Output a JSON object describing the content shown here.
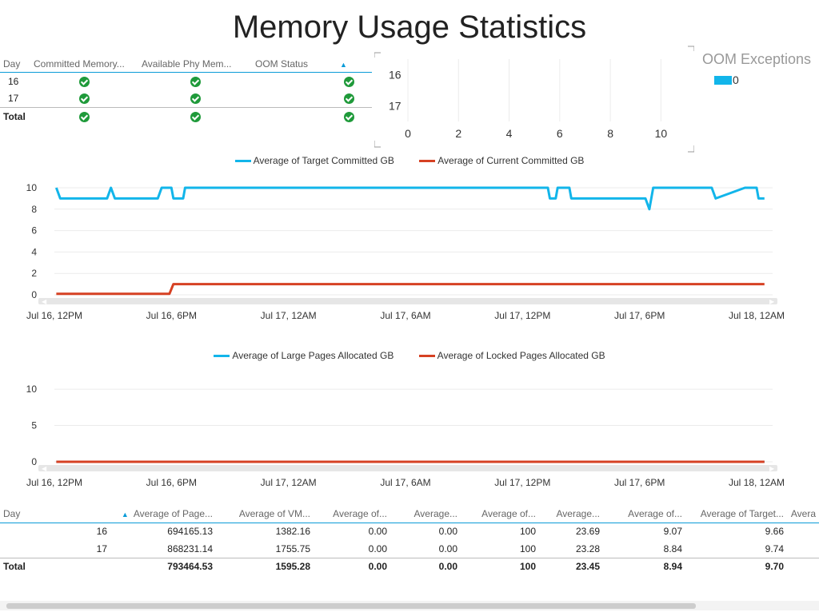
{
  "page_title": "Memory Usage Statistics",
  "status_table": {
    "headers": [
      "Day",
      "Committed Memory...",
      "Available Phy Mem...",
      "OOM Status"
    ],
    "rows": [
      {
        "day": "16"
      },
      {
        "day": "17"
      }
    ],
    "total_label": "Total"
  },
  "oom_chart": {
    "legend_title": "OOM Exceptions",
    "legend_label": "0",
    "categories": [
      "16",
      "17"
    ],
    "x_ticks": [
      "0",
      "2",
      "4",
      "6",
      "8",
      "10"
    ]
  },
  "chart_data": [
    {
      "type": "bar",
      "orientation": "horizontal",
      "title": "OOM Exceptions",
      "categories": [
        "16",
        "17"
      ],
      "series": [
        {
          "name": "0",
          "values": [
            0,
            0
          ]
        }
      ],
      "xlim": [
        0,
        11
      ],
      "x_ticks": [
        0,
        2,
        4,
        6,
        8,
        10
      ]
    },
    {
      "type": "line",
      "title": "",
      "y_ticks": [
        0,
        2,
        4,
        6,
        8,
        10
      ],
      "ylim": [
        0,
        10
      ],
      "x_tick_labels": [
        "Jul 16, 12PM",
        "Jul 16, 6PM",
        "Jul 17, 12AM",
        "Jul 17, 6AM",
        "Jul 17, 12PM",
        "Jul 17, 6PM",
        "Jul 18, 12AM"
      ],
      "x_range_hours": [
        0,
        36
      ],
      "series": [
        {
          "name": "Average of Target Committed GB",
          "color": "#12b5ea",
          "points": [
            [
              0.1,
              10
            ],
            [
              0.3,
              9
            ],
            [
              2.7,
              9
            ],
            [
              2.9,
              10
            ],
            [
              3.1,
              9
            ],
            [
              5.3,
              9
            ],
            [
              5.5,
              10
            ],
            [
              6.0,
              10
            ],
            [
              6.1,
              9
            ],
            [
              6.6,
              9
            ],
            [
              6.7,
              10
            ],
            [
              25.3,
              10
            ],
            [
              25.4,
              9
            ],
            [
              25.7,
              9
            ],
            [
              25.8,
              10
            ],
            [
              26.4,
              10
            ],
            [
              26.5,
              9
            ],
            [
              30.3,
              9
            ],
            [
              30.5,
              8
            ],
            [
              30.7,
              10
            ],
            [
              33.7,
              10
            ],
            [
              33.9,
              9
            ],
            [
              35.4,
              10
            ],
            [
              36.0,
              10
            ],
            [
              36.1,
              9
            ],
            [
              36.4,
              9
            ]
          ]
        },
        {
          "name": "Average of Current Committed GB",
          "color": "#d64123",
          "points": [
            [
              0.1,
              0.1
            ],
            [
              5.9,
              0.1
            ],
            [
              6.1,
              1.0
            ],
            [
              36.4,
              1.0
            ]
          ]
        }
      ]
    },
    {
      "type": "line",
      "title": "",
      "y_ticks": [
        0,
        5,
        10
      ],
      "ylim": [
        0,
        11
      ],
      "x_tick_labels": [
        "Jul 16, 12PM",
        "Jul 16, 6PM",
        "Jul 17, 12AM",
        "Jul 17, 6AM",
        "Jul 17, 12PM",
        "Jul 17, 6PM",
        "Jul 18, 12AM"
      ],
      "x_range_hours": [
        0,
        36
      ],
      "series": [
        {
          "name": "Average of Large Pages Allocated GB",
          "color": "#12b5ea",
          "points": [
            [
              0.1,
              0
            ],
            [
              36.4,
              0
            ]
          ]
        },
        {
          "name": "Average of Locked Pages Allocated GB",
          "color": "#d64123",
          "points": [
            [
              0.1,
              0
            ],
            [
              36.4,
              0
            ]
          ]
        }
      ]
    }
  ],
  "detail_table": {
    "headers": [
      "Day",
      "Average of Page...",
      "Average of VM...",
      "Average of...",
      "Average...",
      "Average of...",
      "Average...",
      "Average of...",
      "Average of Target...",
      "Avera"
    ],
    "rows": [
      [
        "16",
        "694165.13",
        "1382.16",
        "0.00",
        "0.00",
        "100",
        "23.69",
        "9.07",
        "9.66",
        ""
      ],
      [
        "17",
        "868231.14",
        "1755.75",
        "0.00",
        "0.00",
        "100",
        "23.28",
        "8.84",
        "9.74",
        ""
      ]
    ],
    "total": [
      "Total",
      "793464.53",
      "1595.28",
      "0.00",
      "0.00",
      "100",
      "23.45",
      "8.94",
      "9.70",
      ""
    ]
  }
}
